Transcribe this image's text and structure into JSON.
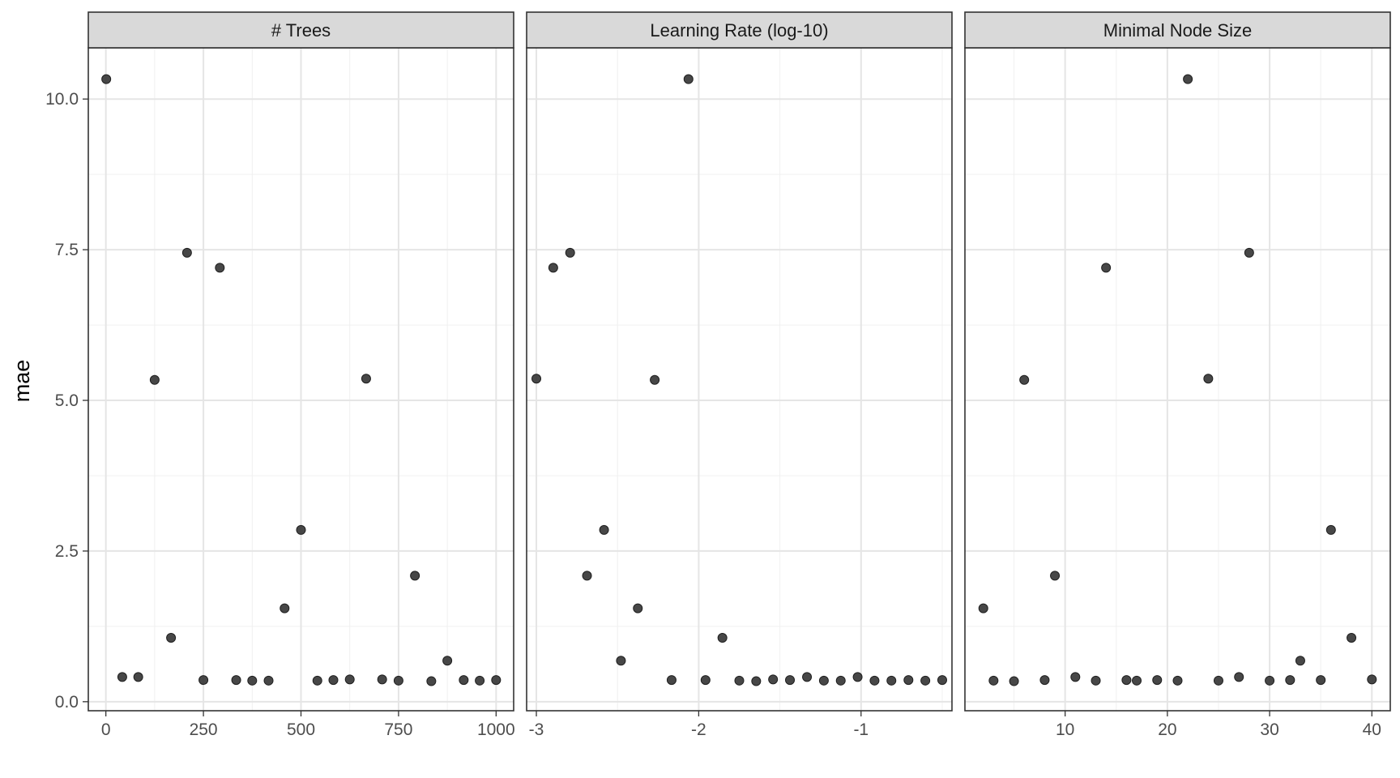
{
  "chart_data": {
    "type": "scatter",
    "ylabel": "mae",
    "xlabel": "",
    "ylim": [
      -0.15,
      10.85
    ],
    "y_ticks": [
      0,
      2.5,
      5,
      7.5,
      10
    ],
    "y_tick_labels": [
      "0.0",
      "2.5",
      "5.0",
      "7.5",
      "10.0"
    ],
    "grid": true,
    "panels": [
      {
        "title": "# Trees",
        "xlim": [
          -45,
          1045
        ],
        "x_ticks": [
          0,
          250,
          500,
          750,
          1000
        ],
        "x_tick_labels": [
          "0",
          "250",
          "500",
          "750",
          "1000"
        ],
        "points": [
          [
            1,
            10.33
          ],
          [
            42,
            0.41
          ],
          [
            83,
            0.41
          ],
          [
            125,
            5.34
          ],
          [
            167,
            1.06
          ],
          [
            208,
            7.45
          ],
          [
            250,
            0.36
          ],
          [
            292,
            7.2
          ],
          [
            334,
            0.36
          ],
          [
            375,
            0.35
          ],
          [
            417,
            0.35
          ],
          [
            458,
            1.55
          ],
          [
            500,
            2.85
          ],
          [
            542,
            0.35
          ],
          [
            583,
            0.36
          ],
          [
            625,
            0.37
          ],
          [
            667,
            5.36
          ],
          [
            708,
            0.37
          ],
          [
            750,
            0.35
          ],
          [
            792,
            2.09
          ],
          [
            834,
            0.34
          ],
          [
            875,
            0.68
          ],
          [
            917,
            0.36
          ],
          [
            958,
            0.35
          ],
          [
            1000,
            0.36
          ]
        ]
      },
      {
        "title": "Learning Rate (log-10)",
        "xlim": [
          -3.06,
          -0.44
        ],
        "x_ticks": [
          -3,
          -2,
          -1
        ],
        "x_tick_labels": [
          "-3",
          "-2",
          "-1"
        ],
        "points": [
          [
            -3.0,
            5.36
          ],
          [
            -2.896,
            7.2
          ],
          [
            -2.792,
            7.45
          ],
          [
            -2.688,
            2.09
          ],
          [
            -2.583,
            2.85
          ],
          [
            -2.479,
            0.68
          ],
          [
            -2.375,
            1.55
          ],
          [
            -2.271,
            5.34
          ],
          [
            -2.167,
            0.36
          ],
          [
            -2.063,
            10.33
          ],
          [
            -1.958,
            0.36
          ],
          [
            -1.854,
            1.06
          ],
          [
            -1.75,
            0.35
          ],
          [
            -1.646,
            0.34
          ],
          [
            -1.542,
            0.37
          ],
          [
            -1.438,
            0.36
          ],
          [
            -1.333,
            0.41
          ],
          [
            -1.229,
            0.35
          ],
          [
            -1.125,
            0.35
          ],
          [
            -1.021,
            0.41
          ],
          [
            -0.917,
            0.35
          ],
          [
            -0.813,
            0.35
          ],
          [
            -0.708,
            0.36
          ],
          [
            -0.604,
            0.35
          ],
          [
            -0.5,
            0.36
          ]
        ]
      },
      {
        "title": "Minimal Node Size",
        "xlim": [
          0.2,
          41.8
        ],
        "x_ticks": [
          10,
          20,
          30,
          40
        ],
        "x_tick_labels": [
          "10",
          "20",
          "30",
          "40"
        ],
        "points": [
          [
            2,
            1.55
          ],
          [
            3,
            0.35
          ],
          [
            5,
            0.34
          ],
          [
            6,
            5.34
          ],
          [
            8,
            0.36
          ],
          [
            9,
            2.09
          ],
          [
            11,
            0.41
          ],
          [
            13,
            0.35
          ],
          [
            14,
            7.2
          ],
          [
            16,
            0.36
          ],
          [
            17,
            0.35
          ],
          [
            19,
            0.36
          ],
          [
            21,
            0.35
          ],
          [
            22,
            10.33
          ],
          [
            24,
            5.36
          ],
          [
            25,
            0.35
          ],
          [
            27,
            0.41
          ],
          [
            28,
            7.45
          ],
          [
            30,
            0.35
          ],
          [
            32,
            0.36
          ],
          [
            33,
            0.68
          ],
          [
            35,
            0.36
          ],
          [
            36,
            2.85
          ],
          [
            38,
            1.06
          ],
          [
            40,
            0.37
          ]
        ]
      }
    ]
  }
}
